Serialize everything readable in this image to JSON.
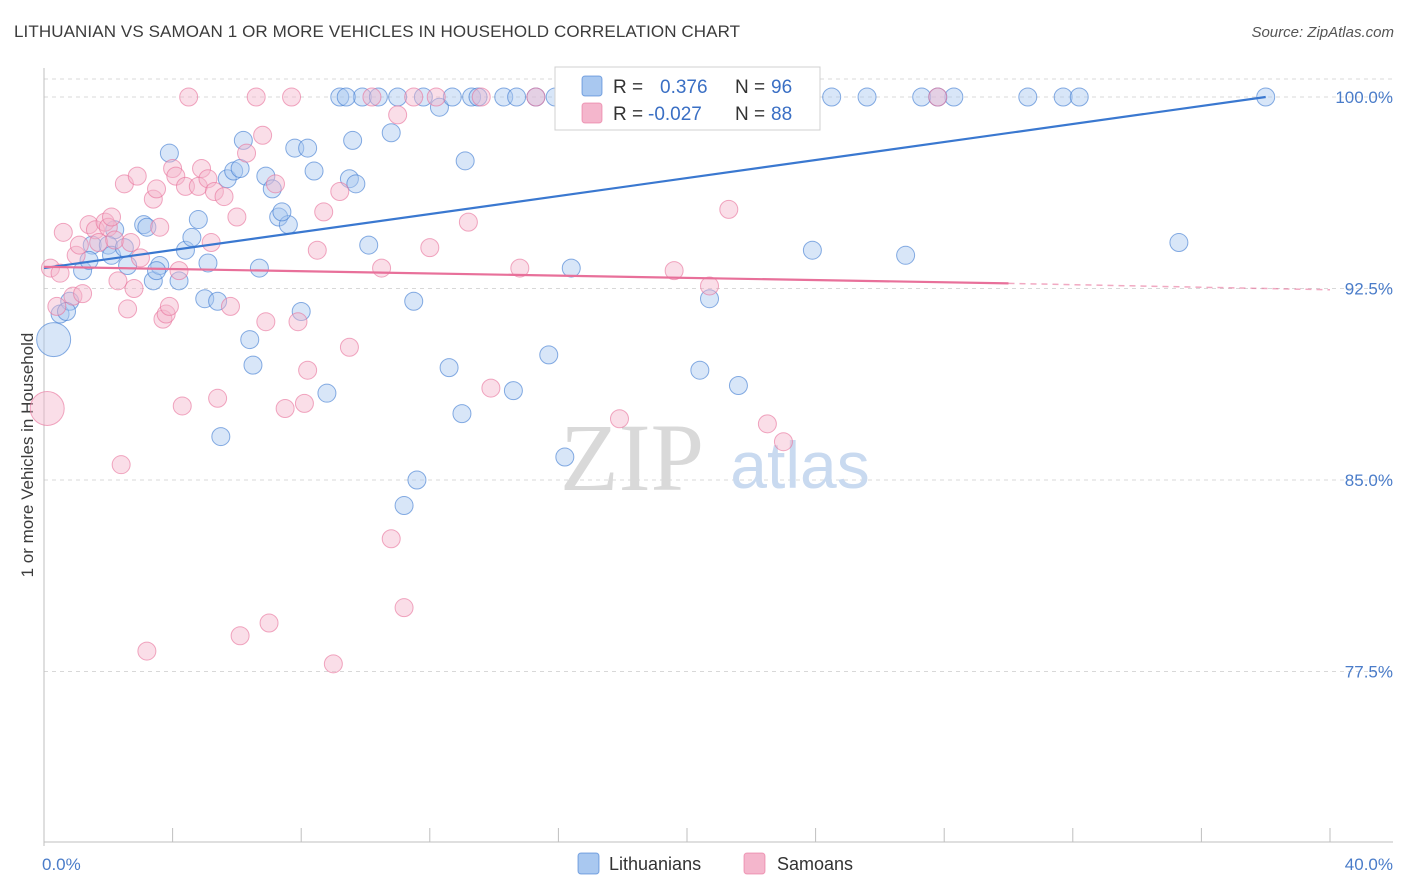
{
  "title": "LITHUANIAN VS SAMOAN 1 OR MORE VEHICLES IN HOUSEHOLD CORRELATION CHART",
  "source": "Source: ZipAtlas.com",
  "watermark": {
    "zip": "ZIP",
    "atlas": "atlas"
  },
  "colors": {
    "blue": "#3a78d0",
    "blue_fill": "#a9c8f0",
    "pink": "#e8709a",
    "pink_fill": "#f4b6cc",
    "grid": "#d8d8d8",
    "tick_label": "#4a7cc9"
  },
  "legend": {
    "r_label": "R =",
    "n_label": "N =",
    "rows": [
      {
        "series": "Lithuanians",
        "r": "0.376",
        "n": "96"
      },
      {
        "series": "Samoans",
        "r": "-0.027",
        "n": "88"
      }
    ]
  },
  "chart_data": {
    "type": "scatter",
    "title": "LITHUANIAN VS SAMOAN 1 OR MORE VEHICLES IN HOUSEHOLD CORRELATION CHART",
    "xlabel": "",
    "ylabel": "1 or more Vehicles in Household",
    "xlim": [
      0,
      40
    ],
    "ylim": [
      70,
      100.5
    ],
    "x_tick_labels": [
      "0.0%",
      "40.0%"
    ],
    "y_ticks": [
      77.5,
      85.0,
      92.5,
      100.0
    ],
    "y_tick_labels": [
      "77.5%",
      "85.0%",
      "92.5%",
      "100.0%"
    ],
    "grid": true,
    "legend_position": "bottom-center",
    "series": [
      {
        "name": "Lithuanians",
        "color": "#3a78d0",
        "trend": {
          "x": [
            0,
            38.0
          ],
          "y": [
            93.3,
            100.0
          ]
        },
        "points": [
          [
            0.3,
            90.5,
            8
          ],
          [
            0.5,
            91.5,
            5
          ],
          [
            0.8,
            92.0,
            5
          ],
          [
            0.7,
            91.6,
            5
          ],
          [
            1.2,
            93.2,
            5
          ],
          [
            1.5,
            94.2,
            5
          ],
          [
            1.4,
            93.6,
            5
          ],
          [
            2.2,
            94.8,
            5
          ],
          [
            2.0,
            94.2,
            5
          ],
          [
            2.1,
            93.8,
            5
          ],
          [
            2.6,
            93.4,
            5
          ],
          [
            2.5,
            94.1,
            5
          ],
          [
            3.1,
            95.0,
            5
          ],
          [
            3.2,
            94.9,
            5
          ],
          [
            3.4,
            92.8,
            5
          ],
          [
            3.6,
            93.4,
            5
          ],
          [
            3.5,
            93.2,
            5
          ],
          [
            4.2,
            92.8,
            5
          ],
          [
            3.9,
            97.8,
            5
          ],
          [
            4.4,
            94.0,
            5
          ],
          [
            4.6,
            94.5,
            5
          ],
          [
            4.8,
            95.2,
            5
          ],
          [
            5.0,
            92.1,
            5
          ],
          [
            5.1,
            93.5,
            5
          ],
          [
            5.4,
            92.0,
            5
          ],
          [
            5.5,
            86.7,
            5
          ],
          [
            5.7,
            96.8,
            5
          ],
          [
            5.9,
            97.1,
            5
          ],
          [
            6.1,
            97.2,
            5
          ],
          [
            6.2,
            98.3,
            5
          ],
          [
            6.4,
            90.5,
            5
          ],
          [
            6.5,
            89.5,
            5
          ],
          [
            6.7,
            93.3,
            5
          ],
          [
            6.9,
            96.9,
            5
          ],
          [
            7.1,
            96.4,
            5
          ],
          [
            7.3,
            95.3,
            5
          ],
          [
            7.6,
            95.0,
            5
          ],
          [
            7.4,
            95.5,
            5
          ],
          [
            7.8,
            98.0,
            5
          ],
          [
            8.0,
            91.6,
            5
          ],
          [
            8.2,
            98.0,
            5
          ],
          [
            8.4,
            97.1,
            5
          ],
          [
            8.8,
            88.4,
            5
          ],
          [
            9.2,
            100.0,
            5
          ],
          [
            9.5,
            96.8,
            5
          ],
          [
            9.6,
            98.3,
            5
          ],
          [
            9.7,
            96.6,
            5
          ],
          [
            9.9,
            100.0,
            5
          ],
          [
            10.1,
            94.2,
            5
          ],
          [
            10.4,
            100.0,
            5
          ],
          [
            10.8,
            98.6,
            5
          ],
          [
            11.0,
            100.0,
            5
          ],
          [
            11.2,
            84.0,
            5
          ],
          [
            11.6,
            85.0,
            5
          ],
          [
            11.5,
            92.0,
            5
          ],
          [
            11.8,
            100.0,
            5
          ],
          [
            12.3,
            99.6,
            5
          ],
          [
            12.7,
            100.0,
            5
          ],
          [
            12.6,
            89.4,
            5
          ],
          [
            13.0,
            87.6,
            5
          ],
          [
            13.1,
            97.5,
            5
          ],
          [
            13.3,
            100.0,
            5
          ],
          [
            13.5,
            100.0,
            5
          ],
          [
            14.3,
            100.0,
            5
          ],
          [
            14.7,
            100.0,
            5
          ],
          [
            14.6,
            88.5,
            5
          ],
          [
            15.3,
            100.0,
            5
          ],
          [
            15.9,
            100.0,
            5
          ],
          [
            15.7,
            89.9,
            5
          ],
          [
            16.2,
            85.9,
            5
          ],
          [
            16.4,
            93.3,
            5
          ],
          [
            17.0,
            100.0,
            5
          ],
          [
            17.8,
            100.0,
            5
          ],
          [
            18.2,
            100.0,
            5
          ],
          [
            19.1,
            100.0,
            5
          ],
          [
            19.2,
            100.0,
            5
          ],
          [
            19.6,
            100.0,
            5
          ],
          [
            20.4,
            89.3,
            5
          ],
          [
            20.7,
            92.1,
            5
          ],
          [
            21.3,
            100.0,
            5
          ],
          [
            21.6,
            88.7,
            5
          ],
          [
            22.2,
            100.0,
            5
          ],
          [
            23.2,
            100.0,
            5
          ],
          [
            23.9,
            94.0,
            5
          ],
          [
            24.5,
            100.0,
            5
          ],
          [
            25.6,
            100.0,
            5
          ],
          [
            26.8,
            93.8,
            5
          ],
          [
            27.3,
            100.0,
            5
          ],
          [
            28.3,
            100.0,
            5
          ],
          [
            30.6,
            100.0,
            5
          ],
          [
            31.7,
            100.0,
            5
          ],
          [
            32.2,
            100.0,
            5
          ],
          [
            35.3,
            94.3,
            5
          ],
          [
            38.0,
            100.0,
            5
          ],
          [
            27.8,
            100.0,
            5
          ],
          [
            9.4,
            100.0,
            5
          ]
        ]
      },
      {
        "name": "Samoans",
        "color": "#e8709a",
        "trend": {
          "x": [
            0,
            30.0
          ],
          "y": [
            93.35,
            92.7
          ]
        },
        "trend_dashed": {
          "x": [
            30.0,
            40.0
          ],
          "y": [
            92.7,
            92.45
          ]
        },
        "points": [
          [
            0.1,
            87.8,
            8
          ],
          [
            0.2,
            93.3,
            5
          ],
          [
            0.4,
            91.8,
            5
          ],
          [
            0.6,
            94.7,
            5
          ],
          [
            0.5,
            93.1,
            5
          ],
          [
            0.9,
            92.2,
            5
          ],
          [
            1.0,
            93.8,
            5
          ],
          [
            1.1,
            94.2,
            5
          ],
          [
            1.2,
            92.3,
            5
          ],
          [
            1.4,
            95.0,
            5
          ],
          [
            1.6,
            94.8,
            5
          ],
          [
            1.7,
            94.3,
            5
          ],
          [
            1.9,
            95.1,
            5
          ],
          [
            2.0,
            94.9,
            5
          ],
          [
            2.1,
            95.3,
            5
          ],
          [
            2.2,
            94.4,
            5
          ],
          [
            2.3,
            92.8,
            5
          ],
          [
            2.4,
            85.6,
            5
          ],
          [
            2.5,
            96.6,
            5
          ],
          [
            2.6,
            91.7,
            5
          ],
          [
            2.7,
            94.3,
            5
          ],
          [
            2.8,
            92.5,
            5
          ],
          [
            2.9,
            96.9,
            5
          ],
          [
            3.0,
            93.7,
            5
          ],
          [
            3.2,
            78.3,
            5
          ],
          [
            3.4,
            96.0,
            5
          ],
          [
            3.5,
            96.4,
            5
          ],
          [
            3.6,
            94.9,
            5
          ],
          [
            3.7,
            91.3,
            5
          ],
          [
            3.8,
            91.5,
            5
          ],
          [
            3.9,
            91.8,
            5
          ],
          [
            4.0,
            97.2,
            5
          ],
          [
            4.1,
            96.9,
            5
          ],
          [
            4.2,
            93.2,
            5
          ],
          [
            4.3,
            87.9,
            5
          ],
          [
            4.4,
            96.5,
            5
          ],
          [
            4.5,
            100.0,
            5
          ],
          [
            4.8,
            96.5,
            5
          ],
          [
            4.9,
            97.2,
            5
          ],
          [
            5.1,
            96.8,
            5
          ],
          [
            5.2,
            94.3,
            5
          ],
          [
            5.3,
            96.3,
            5
          ],
          [
            5.4,
            88.2,
            5
          ],
          [
            5.6,
            96.1,
            5
          ],
          [
            5.8,
            91.8,
            5
          ],
          [
            6.0,
            95.3,
            5
          ],
          [
            6.1,
            78.9,
            5
          ],
          [
            6.3,
            97.8,
            5
          ],
          [
            6.6,
            100.0,
            5
          ],
          [
            6.8,
            98.5,
            5
          ],
          [
            6.9,
            91.2,
            5
          ],
          [
            7.0,
            79.4,
            5
          ],
          [
            7.2,
            96.6,
            5
          ],
          [
            7.5,
            87.8,
            5
          ],
          [
            7.7,
            100.0,
            5
          ],
          [
            7.9,
            91.2,
            5
          ],
          [
            8.1,
            88.0,
            5
          ],
          [
            8.2,
            89.3,
            5
          ],
          [
            8.5,
            94.0,
            5
          ],
          [
            8.7,
            95.5,
            5
          ],
          [
            9.0,
            77.8,
            5
          ],
          [
            9.2,
            96.3,
            5
          ],
          [
            9.5,
            90.2,
            5
          ],
          [
            10.2,
            100.0,
            5
          ],
          [
            10.5,
            93.3,
            5
          ],
          [
            10.8,
            82.7,
            5
          ],
          [
            11.0,
            99.3,
            5
          ],
          [
            11.2,
            80.0,
            5
          ],
          [
            11.5,
            100.0,
            5
          ],
          [
            12.0,
            94.1,
            5
          ],
          [
            12.2,
            100.0,
            5
          ],
          [
            13.2,
            95.1,
            5
          ],
          [
            13.6,
            100.0,
            5
          ],
          [
            13.9,
            88.6,
            5
          ],
          [
            14.8,
            93.3,
            5
          ],
          [
            15.3,
            100.0,
            5
          ],
          [
            16.4,
            100.0,
            5
          ],
          [
            17.0,
            100.0,
            5
          ],
          [
            17.5,
            100.0,
            5
          ],
          [
            17.9,
            87.4,
            5
          ],
          [
            19.1,
            100.0,
            5
          ],
          [
            19.6,
            93.2,
            5
          ],
          [
            20.1,
            100.0,
            5
          ],
          [
            20.7,
            92.6,
            5
          ],
          [
            21.3,
            95.6,
            5
          ],
          [
            22.5,
            87.2,
            5
          ],
          [
            23.0,
            86.5,
            5
          ],
          [
            27.8,
            100.0,
            5
          ]
        ]
      }
    ]
  }
}
